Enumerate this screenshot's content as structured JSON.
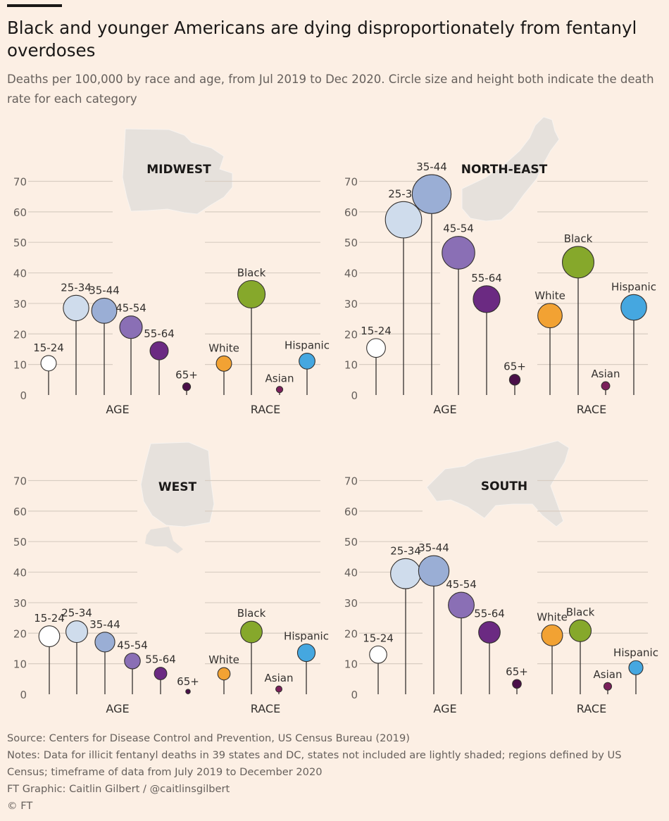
{
  "header": {
    "title": "Black and younger Americans are dying disproportionately from fentanyl overdoses",
    "subtitle": "Deaths per 100,000 by race and age, from Jul 2019 to Dec 2020. Circle size and height both indicate the death rate for each category"
  },
  "colors": {
    "background": "#fcefe4",
    "grid": "#d8cdc2",
    "map": "#e6e1dc",
    "age": {
      "15-24": "#ffffff",
      "25-34": "#cfdcec",
      "35-44": "#9aaed5",
      "45-54": "#8a6fb5",
      "55-64": "#6b2a82",
      "65+": "#4a0f49"
    },
    "race": {
      "White": "#f2a233",
      "Black": "#86a82b",
      "Asian": "#7a1f5a",
      "Hispanic": "#45a7e0"
    }
  },
  "chart_data": [
    {
      "type": "scatter",
      "title": "MIDWEST",
      "ylim": [
        0,
        70
      ],
      "yticks": [
        0,
        10,
        20,
        30,
        40,
        50,
        60,
        70
      ],
      "age": {
        "label": "AGE",
        "categories": [
          "15-24",
          "25-34",
          "35-44",
          "45-54",
          "55-64",
          "65+"
        ],
        "values": [
          10.4,
          28.5,
          27.6,
          22.2,
          14.5,
          2.7
        ]
      },
      "race": {
        "label": "RACE",
        "categories": [
          "White",
          "Black",
          "Asian",
          "Hispanic"
        ],
        "values": [
          10.3,
          33.0,
          1.8,
          11.1
        ]
      }
    },
    {
      "type": "scatter",
      "title": "NORTH-EAST",
      "ylim": [
        0,
        70
      ],
      "yticks": [
        0,
        10,
        20,
        30,
        40,
        50,
        60,
        70
      ],
      "age": {
        "label": "AGE",
        "categories": [
          "15-24",
          "25-34",
          "35-44",
          "45-54",
          "55-64",
          "65+"
        ],
        "values": [
          15.4,
          57.4,
          65.8,
          46.6,
          31.4,
          5.0
        ]
      },
      "race": {
        "label": "RACE",
        "categories": [
          "White",
          "Black",
          "Asian",
          "Hispanic"
        ],
        "values": [
          26.0,
          43.5,
          3.0,
          28.7
        ]
      }
    },
    {
      "type": "scatter",
      "title": "WEST",
      "ylim": [
        0,
        70
      ],
      "yticks": [
        0,
        10,
        20,
        30,
        40,
        50,
        60,
        70
      ],
      "age": {
        "label": "AGE",
        "categories": [
          "15-24",
          "25-34",
          "35-44",
          "45-54",
          "55-64",
          "65+"
        ],
        "values": [
          19.0,
          20.5,
          17.1,
          10.9,
          6.8,
          0.9
        ]
      },
      "race": {
        "label": "RACE",
        "categories": [
          "White",
          "Black",
          "Asian",
          "Hispanic"
        ],
        "values": [
          6.7,
          20.4,
          1.7,
          13.6
        ]
      }
    },
    {
      "type": "scatter",
      "title": "SOUTH",
      "ylim": [
        0,
        70
      ],
      "yticks": [
        0,
        10,
        20,
        30,
        40,
        50,
        60,
        70
      ],
      "age": {
        "label": "AGE",
        "categories": [
          "15-24",
          "25-34",
          "35-44",
          "45-54",
          "55-64",
          "65+"
        ],
        "values": [
          13.0,
          39.5,
          40.4,
          29.2,
          20.3,
          3.4
        ]
      },
      "race": {
        "label": "RACE",
        "categories": [
          "White",
          "Black",
          "Asian",
          "Hispanic"
        ],
        "values": [
          19.3,
          20.8,
          2.6,
          8.7
        ]
      }
    }
  ],
  "footer": {
    "source": "Source: Centers for Disease Control and Prevention, US Census Bureau (2019)",
    "notes": "Notes: Data for illicit fentanyl deaths in 39 states and DC, states not included are lightly shaded; regions defined by US Census; timeframe of data from July 2019 to December 2020",
    "credit": "FT Graphic: Caitlin Gilbert / @caitlinsgilbert",
    "copyright": "© FT"
  }
}
